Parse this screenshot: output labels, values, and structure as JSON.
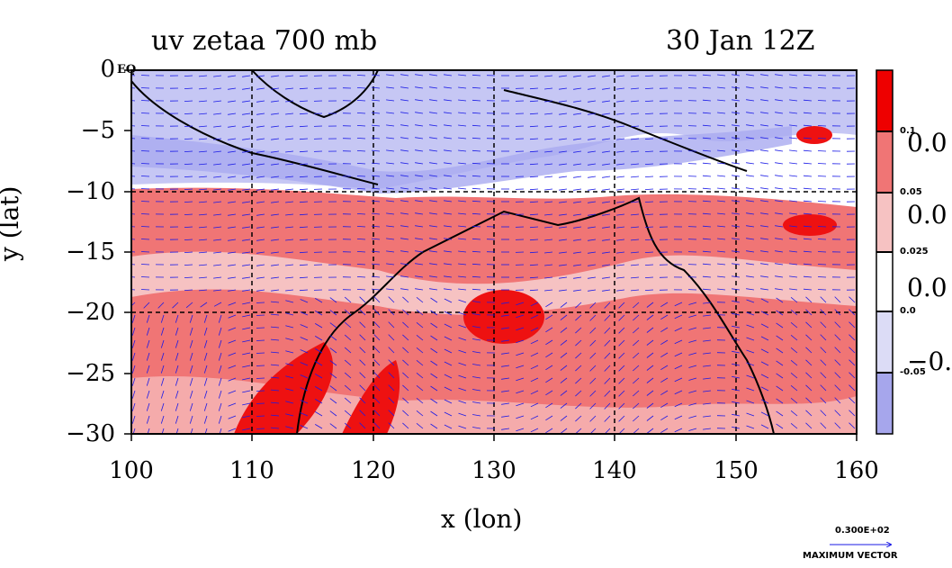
{
  "title": {
    "left": "uv zetaa 700 mb",
    "right": "30 Jan 12Z"
  },
  "axes": {
    "x_title": "x (lon)",
    "y_title": "y (lat)",
    "x_ticks": [
      "100",
      "110",
      "120",
      "130",
      "140",
      "150",
      "160"
    ],
    "y_ticks": [
      "0",
      "−5",
      "−10",
      "−15",
      "−20",
      "−25",
      "−30"
    ],
    "eq_label": "EQ",
    "x_range": [
      100,
      160
    ],
    "y_range": [
      -30,
      0
    ],
    "grid": true
  },
  "colorbar": {
    "small_labels": [
      "0.1",
      "0.05",
      "0.025",
      "0.0",
      "-0.05"
    ],
    "big_labels": [
      "0.0",
      "0.0",
      "0.0",
      "−0."
    ],
    "colors": [
      "#ee0000",
      "#f07575",
      "#f6c2c2",
      "#ffffff",
      "#dcdcf6",
      "#a6a6ec"
    ]
  },
  "max_vector": {
    "value": "0.300E+02",
    "label": "MAXIMUM VECTOR"
  },
  "fields": {
    "negative_color": "#a9aaf0",
    "positive_color": "#ee2222",
    "vector_color": "#1a1ae6",
    "coast_color": "#000000",
    "contour_color": "#e60000"
  }
}
